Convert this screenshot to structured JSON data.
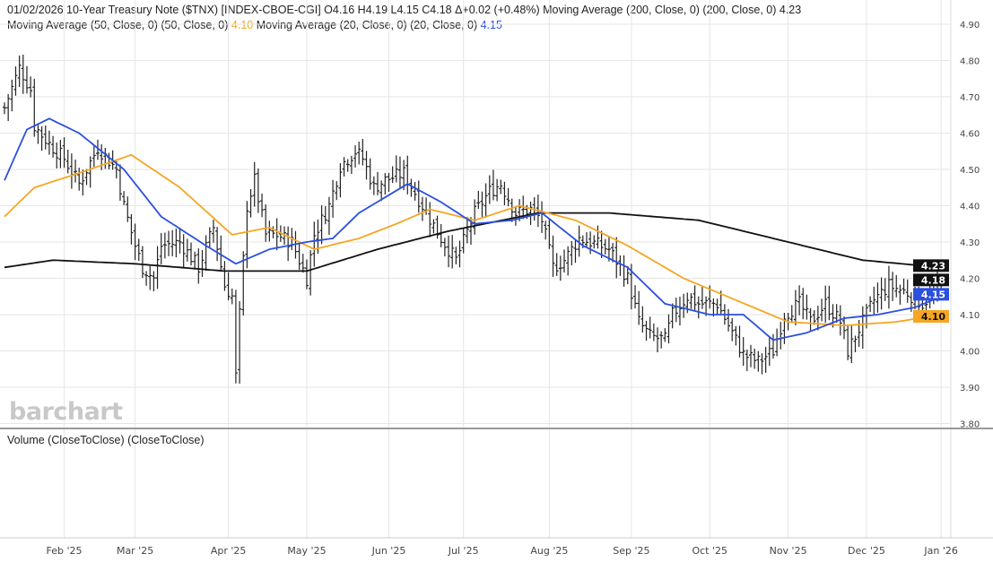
{
  "header": {
    "line1": "01/02/2026 10-Year Treasury Note ($TNX) [INDEX-CBOE-CGI] O4.16 H4.19 L4.15 C4.18 Δ+0.02 (+0.48%) Moving Average (200, Close, 0)  (200, Close, 0) 4.23",
    "ma50_label": "Moving Average (50, Close, 0)  (50, Close, 0) ",
    "ma50_value": "4.10",
    "ma20_label": " Moving Average (20, Close, 0)  (20, Close, 0) ",
    "ma20_value": "4.15"
  },
  "volume_label": "Volume (CloseToClose)  (CloseToClose)",
  "watermark": "barchart",
  "colors": {
    "ma200": "#111111",
    "ma50": "#f5a623",
    "ma20": "#2b4fe0",
    "bars": "#222222",
    "grid": "#e4e4e4"
  },
  "chart_data": {
    "type": "ohlc",
    "title": "10-Year Treasury Note ($TNX)",
    "xlabel": "",
    "ylabel": "",
    "x_unit": "trading day index (0 = early Jan 2025, 251 = 01/02/2026)",
    "ylim": [
      3.8,
      4.9
    ],
    "yticks": [
      "4.90",
      "4.80",
      "4.70",
      "4.60",
      "4.50",
      "4.40",
      "4.30",
      "4.20",
      "4.10",
      "4.00",
      "3.90",
      "3.80"
    ],
    "xticks": [
      {
        "label": "Feb '25",
        "day": 16
      },
      {
        "label": "Mar '25",
        "day": 35
      },
      {
        "label": "Apr '25",
        "day": 60
      },
      {
        "label": "May '25",
        "day": 81
      },
      {
        "label": "Jun '25",
        "day": 103
      },
      {
        "label": "Jul '25",
        "day": 123
      },
      {
        "label": "Aug '25",
        "day": 146
      },
      {
        "label": "Sep '25",
        "day": 168
      },
      {
        "label": "Oct '25",
        "day": 189
      },
      {
        "label": "Nov '25",
        "day": 210
      },
      {
        "label": "Dec '25",
        "day": 231
      },
      {
        "label": "Jan '26",
        "day": 251
      }
    ],
    "close_keypoints": [
      [
        0,
        4.67
      ],
      [
        4,
        4.78
      ],
      [
        7,
        4.72
      ],
      [
        8,
        4.62
      ],
      [
        12,
        4.57
      ],
      [
        16,
        4.53
      ],
      [
        20,
        4.46
      ],
      [
        25,
        4.56
      ],
      [
        30,
        4.5
      ],
      [
        32,
        4.4
      ],
      [
        35,
        4.29
      ],
      [
        37,
        4.23
      ],
      [
        40,
        4.2
      ],
      [
        42,
        4.29
      ],
      [
        47,
        4.3
      ],
      [
        52,
        4.23
      ],
      [
        56,
        4.34
      ],
      [
        59,
        4.18
      ],
      [
        61,
        4.15
      ],
      [
        62,
        3.93
      ],
      [
        63,
        4.1
      ],
      [
        65,
        4.4
      ],
      [
        67,
        4.47
      ],
      [
        70,
        4.32
      ],
      [
        73,
        4.32
      ],
      [
        77,
        4.3
      ],
      [
        81,
        4.2
      ],
      [
        83,
        4.32
      ],
      [
        87,
        4.4
      ],
      [
        90,
        4.51
      ],
      [
        94,
        4.55
      ],
      [
        96,
        4.53
      ],
      [
        99,
        4.45
      ],
      [
        102,
        4.47
      ],
      [
        107,
        4.49
      ],
      [
        112,
        4.4
      ],
      [
        117,
        4.31
      ],
      [
        121,
        4.25
      ],
      [
        126,
        4.38
      ],
      [
        130,
        4.44
      ],
      [
        133,
        4.46
      ],
      [
        137,
        4.38
      ],
      [
        141,
        4.39
      ],
      [
        144,
        4.36
      ],
      [
        147,
        4.23
      ],
      [
        150,
        4.25
      ],
      [
        154,
        4.31
      ],
      [
        157,
        4.3
      ],
      [
        162,
        4.28
      ],
      [
        167,
        4.2
      ],
      [
        170,
        4.08
      ],
      [
        173,
        4.04
      ],
      [
        177,
        4.03
      ],
      [
        179,
        4.1
      ],
      [
        183,
        4.15
      ],
      [
        186,
        4.13
      ],
      [
        191,
        4.13
      ],
      [
        195,
        4.05
      ],
      [
        198,
        3.99
      ],
      [
        202,
        3.97
      ],
      [
        206,
        4.0
      ],
      [
        209,
        4.1
      ],
      [
        213,
        4.13
      ],
      [
        216,
        4.08
      ],
      [
        220,
        4.13
      ],
      [
        224,
        4.08
      ],
      [
        226,
        4.0
      ],
      [
        230,
        4.08
      ],
      [
        233,
        4.14
      ],
      [
        237,
        4.18
      ],
      [
        242,
        4.16
      ],
      [
        246,
        4.13
      ],
      [
        251,
        4.18
      ]
    ],
    "last_bar": {
      "open": 4.16,
      "high": 4.19,
      "low": 4.15,
      "close": 4.18
    },
    "series": [
      {
        "name": "Moving Average (200)",
        "color": "#111111",
        "last": "4.23",
        "points": [
          [
            0,
            4.23
          ],
          [
            13,
            4.25
          ],
          [
            35,
            4.24
          ],
          [
            59,
            4.22
          ],
          [
            81,
            4.22
          ],
          [
            100,
            4.28
          ],
          [
            119,
            4.33
          ],
          [
            143,
            4.38
          ],
          [
            162,
            4.38
          ],
          [
            186,
            4.36
          ],
          [
            210,
            4.3
          ],
          [
            230,
            4.25
          ],
          [
            251,
            4.23
          ]
        ]
      },
      {
        "name": "Moving Average (50)",
        "color": "#f5a623",
        "last": "4.10",
        "points": [
          [
            0,
            4.37
          ],
          [
            8,
            4.45
          ],
          [
            20,
            4.49
          ],
          [
            34,
            4.54
          ],
          [
            47,
            4.45
          ],
          [
            61,
            4.32
          ],
          [
            71,
            4.34
          ],
          [
            83,
            4.28
          ],
          [
            95,
            4.31
          ],
          [
            105,
            4.35
          ],
          [
            114,
            4.39
          ],
          [
            126,
            4.36
          ],
          [
            138,
            4.4
          ],
          [
            153,
            4.36
          ],
          [
            167,
            4.29
          ],
          [
            182,
            4.2
          ],
          [
            196,
            4.14
          ],
          [
            210,
            4.08
          ],
          [
            225,
            4.07
          ],
          [
            239,
            4.08
          ],
          [
            251,
            4.1
          ]
        ]
      },
      {
        "name": "Moving Average (20)",
        "color": "#2b4fe0",
        "last": "4.15",
        "points": [
          [
            0,
            4.47
          ],
          [
            6,
            4.61
          ],
          [
            12,
            4.64
          ],
          [
            20,
            4.6
          ],
          [
            32,
            4.5
          ],
          [
            42,
            4.37
          ],
          [
            54,
            4.29
          ],
          [
            62,
            4.24
          ],
          [
            71,
            4.28
          ],
          [
            81,
            4.3
          ],
          [
            88,
            4.31
          ],
          [
            95,
            4.38
          ],
          [
            108,
            4.46
          ],
          [
            117,
            4.41
          ],
          [
            126,
            4.35
          ],
          [
            136,
            4.36
          ],
          [
            144,
            4.38
          ],
          [
            155,
            4.29
          ],
          [
            167,
            4.23
          ],
          [
            177,
            4.13
          ],
          [
            189,
            4.1
          ],
          [
            198,
            4.1
          ],
          [
            206,
            4.03
          ],
          [
            215,
            4.05
          ],
          [
            225,
            4.09
          ],
          [
            234,
            4.1
          ],
          [
            244,
            4.12
          ],
          [
            251,
            4.15
          ]
        ]
      }
    ],
    "price_tag": "4.18"
  }
}
